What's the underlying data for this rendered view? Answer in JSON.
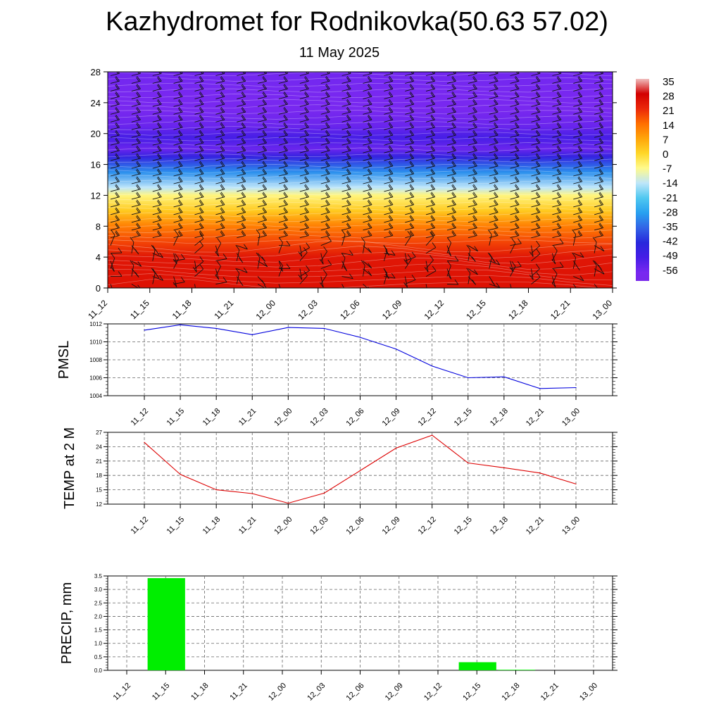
{
  "title": "Kazhydromet for Rodnikovka(50.63 57.02)",
  "subtitle": "11 May 2025",
  "colors": {
    "pmsl_line": "#0000dd",
    "temp_line": "#dd0000",
    "precip_bar": "#00ee00",
    "grid": "#666666"
  },
  "chart_data": [
    {
      "type": "heatmap",
      "title": "",
      "x_ticks": [
        "11_12",
        "11_15",
        "11_18",
        "11_21",
        "12_00",
        "12_03",
        "12_06",
        "12_09",
        "12_12",
        "12_15",
        "12_18",
        "12_21",
        "13_00"
      ],
      "y_ticks": [
        0,
        4,
        8,
        12,
        16,
        20,
        24,
        28
      ],
      "ylim": [
        0,
        28
      ],
      "colorbar_labels": [
        "35",
        "28",
        "21",
        "14",
        "7",
        "0",
        "-7",
        "-14",
        "-21",
        "-28",
        "-35",
        "-42",
        "-49",
        "-56"
      ],
      "temperature_by_height": [
        {
          "height": 0,
          "value": 25
        },
        {
          "height": 4,
          "value": 24
        },
        {
          "height": 6,
          "value": 18
        },
        {
          "height": 8,
          "value": 12
        },
        {
          "height": 10,
          "value": 2
        },
        {
          "height": 12,
          "value": -6
        },
        {
          "height": 13,
          "value": -14
        },
        {
          "height": 15,
          "value": -30
        },
        {
          "height": 17,
          "value": -45
        },
        {
          "height": 18,
          "value": -54
        },
        {
          "height": 19.5,
          "value": -49
        },
        {
          "height": 21,
          "value": -54
        },
        {
          "height": 23,
          "value": -57
        },
        {
          "height": 25,
          "value": -56
        },
        {
          "height": 28,
          "value": -55
        }
      ],
      "wind_barbs": true
    },
    {
      "type": "line",
      "ylabel": "PMSL",
      "categories": [
        "11_12",
        "11_15",
        "11_18",
        "11_21",
        "12_00",
        "12_03",
        "12_06",
        "12_09",
        "12_12",
        "12_15",
        "12_18",
        "12_21",
        "13_00"
      ],
      "values": [
        1011.3,
        1011.9,
        1011.5,
        1010.8,
        1011.6,
        1011.5,
        1010.5,
        1009.2,
        1007.3,
        1006.0,
        1006.1,
        1004.8,
        1004.9
      ],
      "ylim": [
        1004,
        1012
      ],
      "y_ticks": [
        "1004",
        "1006",
        "1008",
        "1010",
        "1012"
      ],
      "grid": true
    },
    {
      "type": "line",
      "ylabel": "TEMP at 2 M",
      "categories": [
        "11_12",
        "11_15",
        "11_18",
        "11_21",
        "12_00",
        "12_03",
        "12_06",
        "12_09",
        "12_12",
        "12_15",
        "12_18",
        "12_21",
        "13_00"
      ],
      "values": [
        24.9,
        18.2,
        15.0,
        14.2,
        12.2,
        14.3,
        19.0,
        23.7,
        26.4,
        20.6,
        19.6,
        18.5,
        16.2
      ],
      "ylim": [
        12,
        27
      ],
      "y_ticks": [
        "12",
        "15",
        "18",
        "21",
        "24",
        "27"
      ],
      "grid": true
    },
    {
      "type": "bar",
      "ylabel": "PRECIP, mm",
      "categories": [
        "11_12",
        "11_15",
        "11_18",
        "11_21",
        "12_00",
        "12_03",
        "12_06",
        "12_09",
        "12_12",
        "12_15",
        "12_18",
        "12_21",
        "13_00"
      ],
      "values": [
        0,
        3.42,
        0,
        0,
        0,
        0,
        0,
        0,
        0,
        0.3,
        0.02,
        0,
        0
      ],
      "ylim": [
        0,
        3.5
      ],
      "y_ticks": [
        "0.0",
        "0.5",
        "1.0",
        "1.5",
        "2.0",
        "2.5",
        "3.0",
        "3.5"
      ],
      "grid": true
    }
  ]
}
